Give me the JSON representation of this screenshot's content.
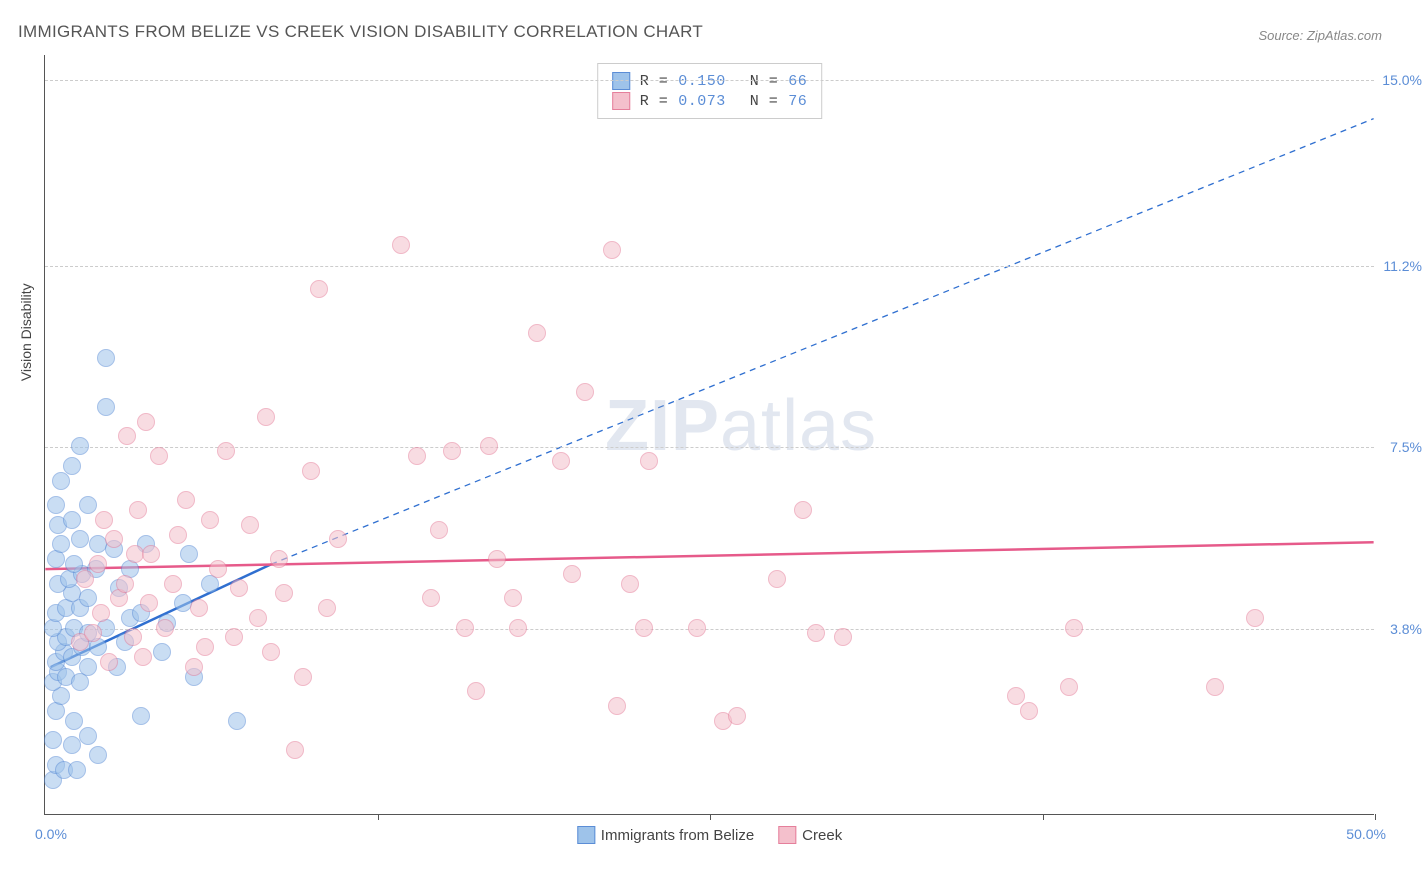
{
  "title": "IMMIGRANTS FROM BELIZE VS CREEK VISION DISABILITY CORRELATION CHART",
  "source_prefix": "Source: ",
  "source_name": "ZipAtlas.com",
  "ylabel": "Vision Disability",
  "watermark_part1": "ZIP",
  "watermark_part2": "atlas",
  "chart": {
    "type": "scatter",
    "background_color": "#ffffff",
    "grid_color": "#cccccc",
    "axis_color": "#555555",
    "tick_label_color": "#5b8dd6",
    "xlim": [
      0.0,
      50.0
    ],
    "ylim": [
      0.0,
      15.5
    ],
    "xticks": [
      12.5,
      25.0,
      37.5,
      50.0
    ],
    "yticks": [
      3.8,
      7.5,
      11.2,
      15.0
    ],
    "ytick_labels": [
      "3.8%",
      "7.5%",
      "11.2%",
      "15.0%"
    ],
    "xlabel_min": "0.0%",
    "xlabel_max": "50.0%",
    "marker_radius": 9,
    "marker_opacity": 0.55,
    "series": [
      {
        "name": "Immigrants from Belize",
        "fill_color": "#9ec3ea",
        "stroke_color": "#5b8dd6",
        "R": "0.150",
        "N": "66",
        "trend": {
          "x1": 0.2,
          "y1": 3.0,
          "x2": 8.5,
          "y2": 5.1,
          "color": "#2f6fd0",
          "width": 2.5,
          "dash": "none",
          "ext_x2": 50.0,
          "ext_y2": 14.2,
          "ext_dash": "6,5",
          "ext_width": 1.3
        },
        "points": [
          [
            0.3,
            0.7
          ],
          [
            0.4,
            1.0
          ],
          [
            0.7,
            0.9
          ],
          [
            1.2,
            0.9
          ],
          [
            1.0,
            1.4
          ],
          [
            0.3,
            1.5
          ],
          [
            1.6,
            1.6
          ],
          [
            2.0,
            1.2
          ],
          [
            1.1,
            1.9
          ],
          [
            0.4,
            2.1
          ],
          [
            0.6,
            2.4
          ],
          [
            0.3,
            2.7
          ],
          [
            0.5,
            2.9
          ],
          [
            0.8,
            2.8
          ],
          [
            1.3,
            2.7
          ],
          [
            1.6,
            3.0
          ],
          [
            0.4,
            3.1
          ],
          [
            0.7,
            3.3
          ],
          [
            1.0,
            3.2
          ],
          [
            1.4,
            3.4
          ],
          [
            0.5,
            3.5
          ],
          [
            0.8,
            3.6
          ],
          [
            0.3,
            3.8
          ],
          [
            1.1,
            3.8
          ],
          [
            1.6,
            3.7
          ],
          [
            2.0,
            3.4
          ],
          [
            2.3,
            3.8
          ],
          [
            0.4,
            4.1
          ],
          [
            0.8,
            4.2
          ],
          [
            1.3,
            4.2
          ],
          [
            1.0,
            4.5
          ],
          [
            1.6,
            4.4
          ],
          [
            0.5,
            4.7
          ],
          [
            0.9,
            4.8
          ],
          [
            1.4,
            4.9
          ],
          [
            0.4,
            5.2
          ],
          [
            1.1,
            5.1
          ],
          [
            1.9,
            5.0
          ],
          [
            0.6,
            5.5
          ],
          [
            1.3,
            5.6
          ],
          [
            2.0,
            5.5
          ],
          [
            0.5,
            5.9
          ],
          [
            1.0,
            6.0
          ],
          [
            0.4,
            6.3
          ],
          [
            1.6,
            6.3
          ],
          [
            0.6,
            6.8
          ],
          [
            1.0,
            7.1
          ],
          [
            1.3,
            7.5
          ],
          [
            2.3,
            8.3
          ],
          [
            2.3,
            9.3
          ],
          [
            2.7,
            3.0
          ],
          [
            3.0,
            3.5
          ],
          [
            3.2,
            4.0
          ],
          [
            3.6,
            4.1
          ],
          [
            2.8,
            4.6
          ],
          [
            3.2,
            5.0
          ],
          [
            2.6,
            5.4
          ],
          [
            3.6,
            2.0
          ],
          [
            5.6,
            2.8
          ],
          [
            4.6,
            3.9
          ],
          [
            5.2,
            4.3
          ],
          [
            6.2,
            4.7
          ],
          [
            5.4,
            5.3
          ],
          [
            7.2,
            1.9
          ],
          [
            3.8,
            5.5
          ],
          [
            4.4,
            3.3
          ]
        ]
      },
      {
        "name": "Creek",
        "fill_color": "#f4c0cc",
        "stroke_color": "#e57f9b",
        "R": "0.073",
        "N": "76",
        "trend": {
          "x1": 0.0,
          "y1": 5.0,
          "x2": 50.0,
          "y2": 5.55,
          "color": "#e65a8a",
          "width": 2.5,
          "dash": "none"
        },
        "points": [
          [
            1.3,
            3.5
          ],
          [
            1.8,
            3.7
          ],
          [
            2.1,
            4.1
          ],
          [
            2.4,
            3.1
          ],
          [
            2.8,
            4.4
          ],
          [
            2.0,
            5.1
          ],
          [
            2.6,
            5.6
          ],
          [
            3.3,
            3.6
          ],
          [
            3.0,
            4.7
          ],
          [
            3.4,
            5.3
          ],
          [
            3.7,
            3.2
          ],
          [
            3.9,
            4.3
          ],
          [
            4.0,
            5.3
          ],
          [
            3.5,
            6.2
          ],
          [
            4.3,
            7.3
          ],
          [
            3.1,
            7.7
          ],
          [
            4.5,
            3.8
          ],
          [
            4.8,
            4.7
          ],
          [
            5.0,
            5.7
          ],
          [
            5.3,
            6.4
          ],
          [
            5.6,
            3.0
          ],
          [
            5.8,
            4.2
          ],
          [
            6.2,
            6.0
          ],
          [
            6.0,
            3.4
          ],
          [
            6.5,
            5.0
          ],
          [
            6.8,
            7.4
          ],
          [
            7.1,
            3.6
          ],
          [
            7.3,
            4.6
          ],
          [
            7.7,
            5.9
          ],
          [
            8.0,
            4.0
          ],
          [
            8.3,
            8.1
          ],
          [
            8.5,
            3.3
          ],
          [
            8.8,
            5.2
          ],
          [
            9.0,
            4.5
          ],
          [
            9.4,
            1.3
          ],
          [
            9.7,
            2.8
          ],
          [
            10.0,
            7.0
          ],
          [
            10.3,
            10.7
          ],
          [
            10.6,
            4.2
          ],
          [
            11.0,
            5.6
          ],
          [
            13.4,
            11.6
          ],
          [
            14.0,
            7.3
          ],
          [
            14.5,
            4.4
          ],
          [
            14.8,
            5.8
          ],
          [
            15.3,
            7.4
          ],
          [
            15.8,
            3.8
          ],
          [
            16.2,
            2.5
          ],
          [
            16.7,
            7.5
          ],
          [
            17.0,
            5.2
          ],
          [
            17.6,
            4.4
          ],
          [
            17.8,
            3.8
          ],
          [
            18.5,
            9.8
          ],
          [
            19.4,
            7.2
          ],
          [
            19.8,
            4.9
          ],
          [
            20.3,
            8.6
          ],
          [
            21.3,
            11.5
          ],
          [
            21.5,
            2.2
          ],
          [
            22.0,
            4.7
          ],
          [
            22.5,
            3.8
          ],
          [
            22.7,
            7.2
          ],
          [
            24.5,
            3.8
          ],
          [
            25.5,
            1.9
          ],
          [
            26.0,
            2.0
          ],
          [
            27.5,
            4.8
          ],
          [
            28.5,
            6.2
          ],
          [
            29.0,
            3.7
          ],
          [
            30.0,
            3.6
          ],
          [
            36.5,
            2.4
          ],
          [
            38.5,
            2.6
          ],
          [
            37.0,
            2.1
          ],
          [
            38.7,
            3.8
          ],
          [
            45.5,
            4.0
          ],
          [
            44.0,
            2.6
          ],
          [
            3.8,
            8.0
          ],
          [
            2.2,
            6.0
          ],
          [
            1.5,
            4.8
          ]
        ]
      }
    ]
  }
}
